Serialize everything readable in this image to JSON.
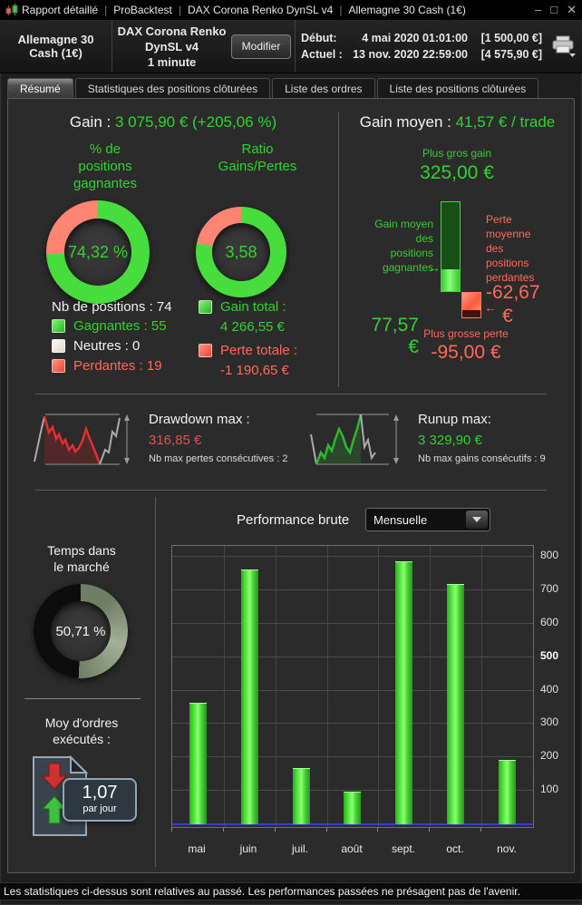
{
  "window": {
    "separator": "|",
    "title_parts": [
      "Rapport détaillé",
      "ProBacktest",
      "DAX Corona Renko DynSL v4",
      "Allemagne 30 Cash (1€)"
    ],
    "controls": {
      "minimize": "–",
      "maximize": "□",
      "close": "✕"
    }
  },
  "header": {
    "instrument": "Allemagne 30 Cash (1€)",
    "system_name": "DAX Corona Renko DynSL v4",
    "timeframe": "1 minute",
    "modify_button": "Modifier",
    "start": {
      "label": "Début:",
      "date": "4 mai 2020 01:01:00",
      "value": "[1 500,00 €]"
    },
    "current": {
      "label": "Actuel :",
      "date": "13 nov. 2020 22:59:00",
      "value": "[4 575,90 €]"
    }
  },
  "tabs": [
    {
      "label": "Résumé"
    },
    {
      "label": "Statistiques des positions clôturées"
    },
    {
      "label": "Liste des ordres"
    },
    {
      "label": "Liste des positions clôturées"
    }
  ],
  "summary": {
    "gain_label": "Gain :",
    "gain_value": "3 075,90 € (+205,06 %)",
    "win_donut": {
      "title_lines": [
        "% de",
        "positions",
        "gagnantes"
      ],
      "value": "74,32 %",
      "pct": 74.32
    },
    "ratio_donut": {
      "title_lines": [
        "Ratio",
        "Gains/Pertes"
      ],
      "value": "3,58",
      "green_pct": 78.2
    },
    "positions_label": "Nb de positions : 74",
    "legend_win": "Gagnantes : 55",
    "legend_neutral": "Neutres : 0",
    "legend_loss": "Perdantes : 19",
    "gain_total_label": "Gain total :",
    "gain_total_value": "4 266,55 €",
    "loss_total_label": "Perte totale :",
    "loss_total_value": "-1 190,65 €"
  },
  "average": {
    "label": "Gain moyen :",
    "value": "41,57 € / trade",
    "biggest_gain_label": "Plus gros gain",
    "biggest_gain_value": "325,00 €",
    "avg_win_lines": [
      "Gain moyen",
      "des",
      "positions",
      "gagnantes"
    ],
    "avg_win_value": "77,57",
    "avg_win_currency": "€",
    "avg_loss_lines": [
      "Perte",
      "moyenne",
      "des",
      "positions",
      "perdantes"
    ],
    "avg_loss_value": "-62,67",
    "avg_loss_currency": "€",
    "biggest_loss_label": "Plus grosse perte",
    "biggest_loss_value": "-95,00 €",
    "bar_values": {
      "max_gain": 325,
      "avg_gain": 77.57,
      "avg_loss": 62.67,
      "max_loss": 95
    }
  },
  "drawdown": {
    "label": "Drawdown max :",
    "value": "316,85 €",
    "streak": "Nb max pertes consécutives : 2"
  },
  "runup": {
    "label": "Runup max:",
    "value": "3 329,90 €",
    "streak": "Nb max gains consécutifs : 9"
  },
  "market_time": {
    "title_lines": [
      "Temps dans",
      "le marché"
    ],
    "value": "50,71 %",
    "pct": 50.71
  },
  "orders": {
    "title_lines": [
      "Moy d'ordres",
      "exécutés :"
    ],
    "value": "1,07",
    "unit": "par jour"
  },
  "performance": {
    "title": "Performance brute",
    "period": "Mensuelle"
  },
  "chart_data": {
    "type": "bar",
    "title": "Performance brute (Mensuelle)",
    "categories": [
      "mai",
      "juin",
      "juil.",
      "août",
      "sept.",
      "oct.",
      "nov."
    ],
    "values": [
      360,
      760,
      165,
      95,
      785,
      715,
      190
    ],
    "xlabel": "",
    "ylabel": "",
    "ylim": [
      0,
      830
    ],
    "yticks": [
      100,
      200,
      300,
      400,
      500,
      600,
      700,
      800
    ],
    "bold_tick": 500,
    "bar_color": "#44e03a",
    "zero_line_color": "#3a3ad0",
    "legend_position": "none",
    "grid": true
  },
  "icons": {
    "arrow_right": "→",
    "arrow_left": "←"
  },
  "colors": {
    "green": "#2fd32f",
    "red": "#ff6a5a",
    "donut_green": "#47dd3c",
    "donut_red": "#ff8573",
    "market_fill_dark": "#6f7f65",
    "market_fill_light": "#a3b095",
    "market_empty": "#0c0c0c"
  },
  "footer": "Les statistiques ci-dessus sont relatives au passé. Les performances passées ne présagent pas de l'avenir."
}
